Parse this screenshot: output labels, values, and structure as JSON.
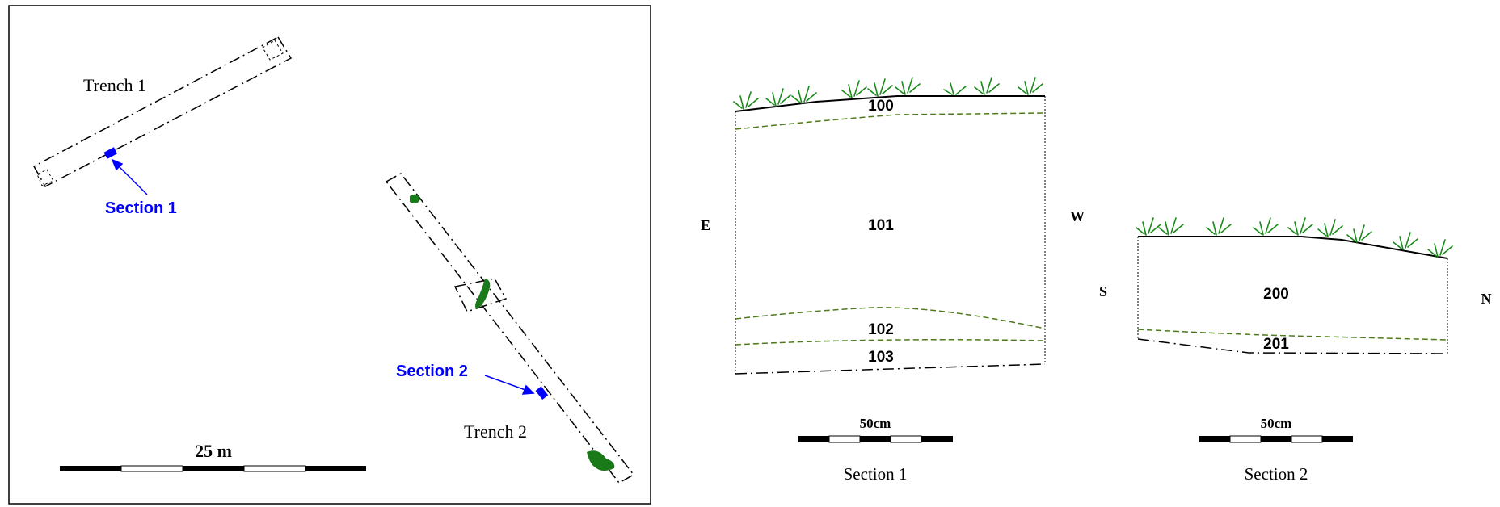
{
  "plan": {
    "trench1_label": "Trench 1",
    "trench2_label": "Trench 2",
    "section1_label": "Section 1",
    "section2_label": "Section 2",
    "scale_label": "25 m"
  },
  "section1": {
    "left_dir": "E",
    "right_dir": "W",
    "layers": [
      "100",
      "101",
      "102",
      "103"
    ],
    "scale_label": "50cm",
    "caption": "Section 1"
  },
  "section2": {
    "left_dir": "S",
    "right_dir": "N",
    "layers": [
      "200",
      "201"
    ],
    "scale_label": "50cm",
    "caption": "Section 2"
  },
  "colors": {
    "line": "#000000",
    "section_marker": "#0000ff",
    "feature": "#1a7a1a",
    "layer_boundary": "#4d7a1a",
    "grass": "#1a8a1a"
  }
}
